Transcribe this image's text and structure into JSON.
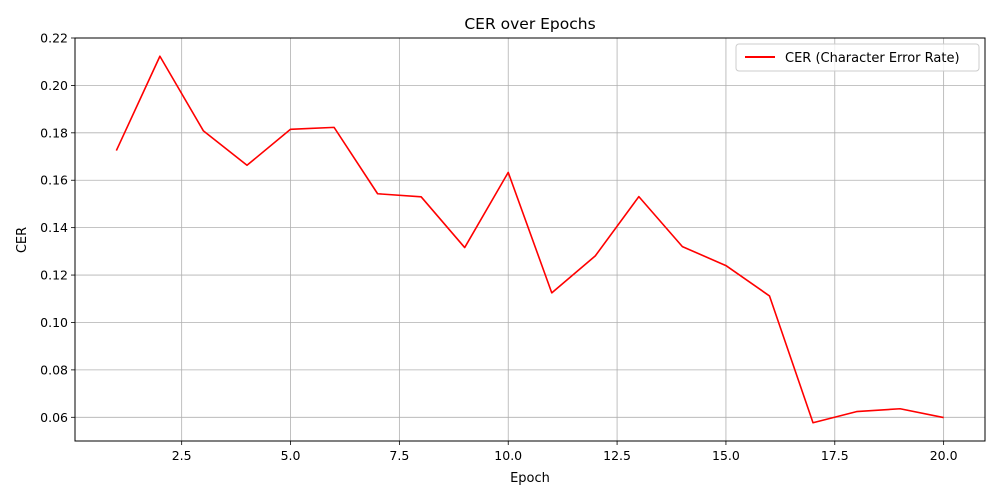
{
  "chart_data": {
    "type": "line",
    "title": "CER over Epochs",
    "xlabel": "Epoch",
    "ylabel": "CER",
    "xlim": [
      0.05,
      20.95
    ],
    "ylim": [
      0.05,
      0.22
    ],
    "xticks": [
      "2.5",
      "5.0",
      "7.5",
      "10.0",
      "12.5",
      "15.0",
      "17.5",
      "20.0"
    ],
    "yticks": [
      "0.06",
      "0.08",
      "0.10",
      "0.12",
      "0.14",
      "0.16",
      "0.18",
      "0.20",
      "0.22"
    ],
    "grid": true,
    "legend_position": "top-right",
    "series": [
      {
        "name": "CER (Character Error Rate)",
        "color": "#ff0000",
        "x": [
          1,
          2,
          3,
          4,
          5,
          6,
          7,
          8,
          9,
          10,
          11,
          12,
          13,
          14,
          15,
          16,
          17,
          18,
          19,
          20
        ],
        "y": [
          0.1725,
          0.2123,
          0.1808,
          0.1663,
          0.1815,
          0.1823,
          0.1543,
          0.153,
          0.1316,
          0.1633,
          0.1125,
          0.1281,
          0.1531,
          0.132,
          0.124,
          0.1112,
          0.0577,
          0.0624,
          0.0636,
          0.0599
        ]
      }
    ]
  }
}
